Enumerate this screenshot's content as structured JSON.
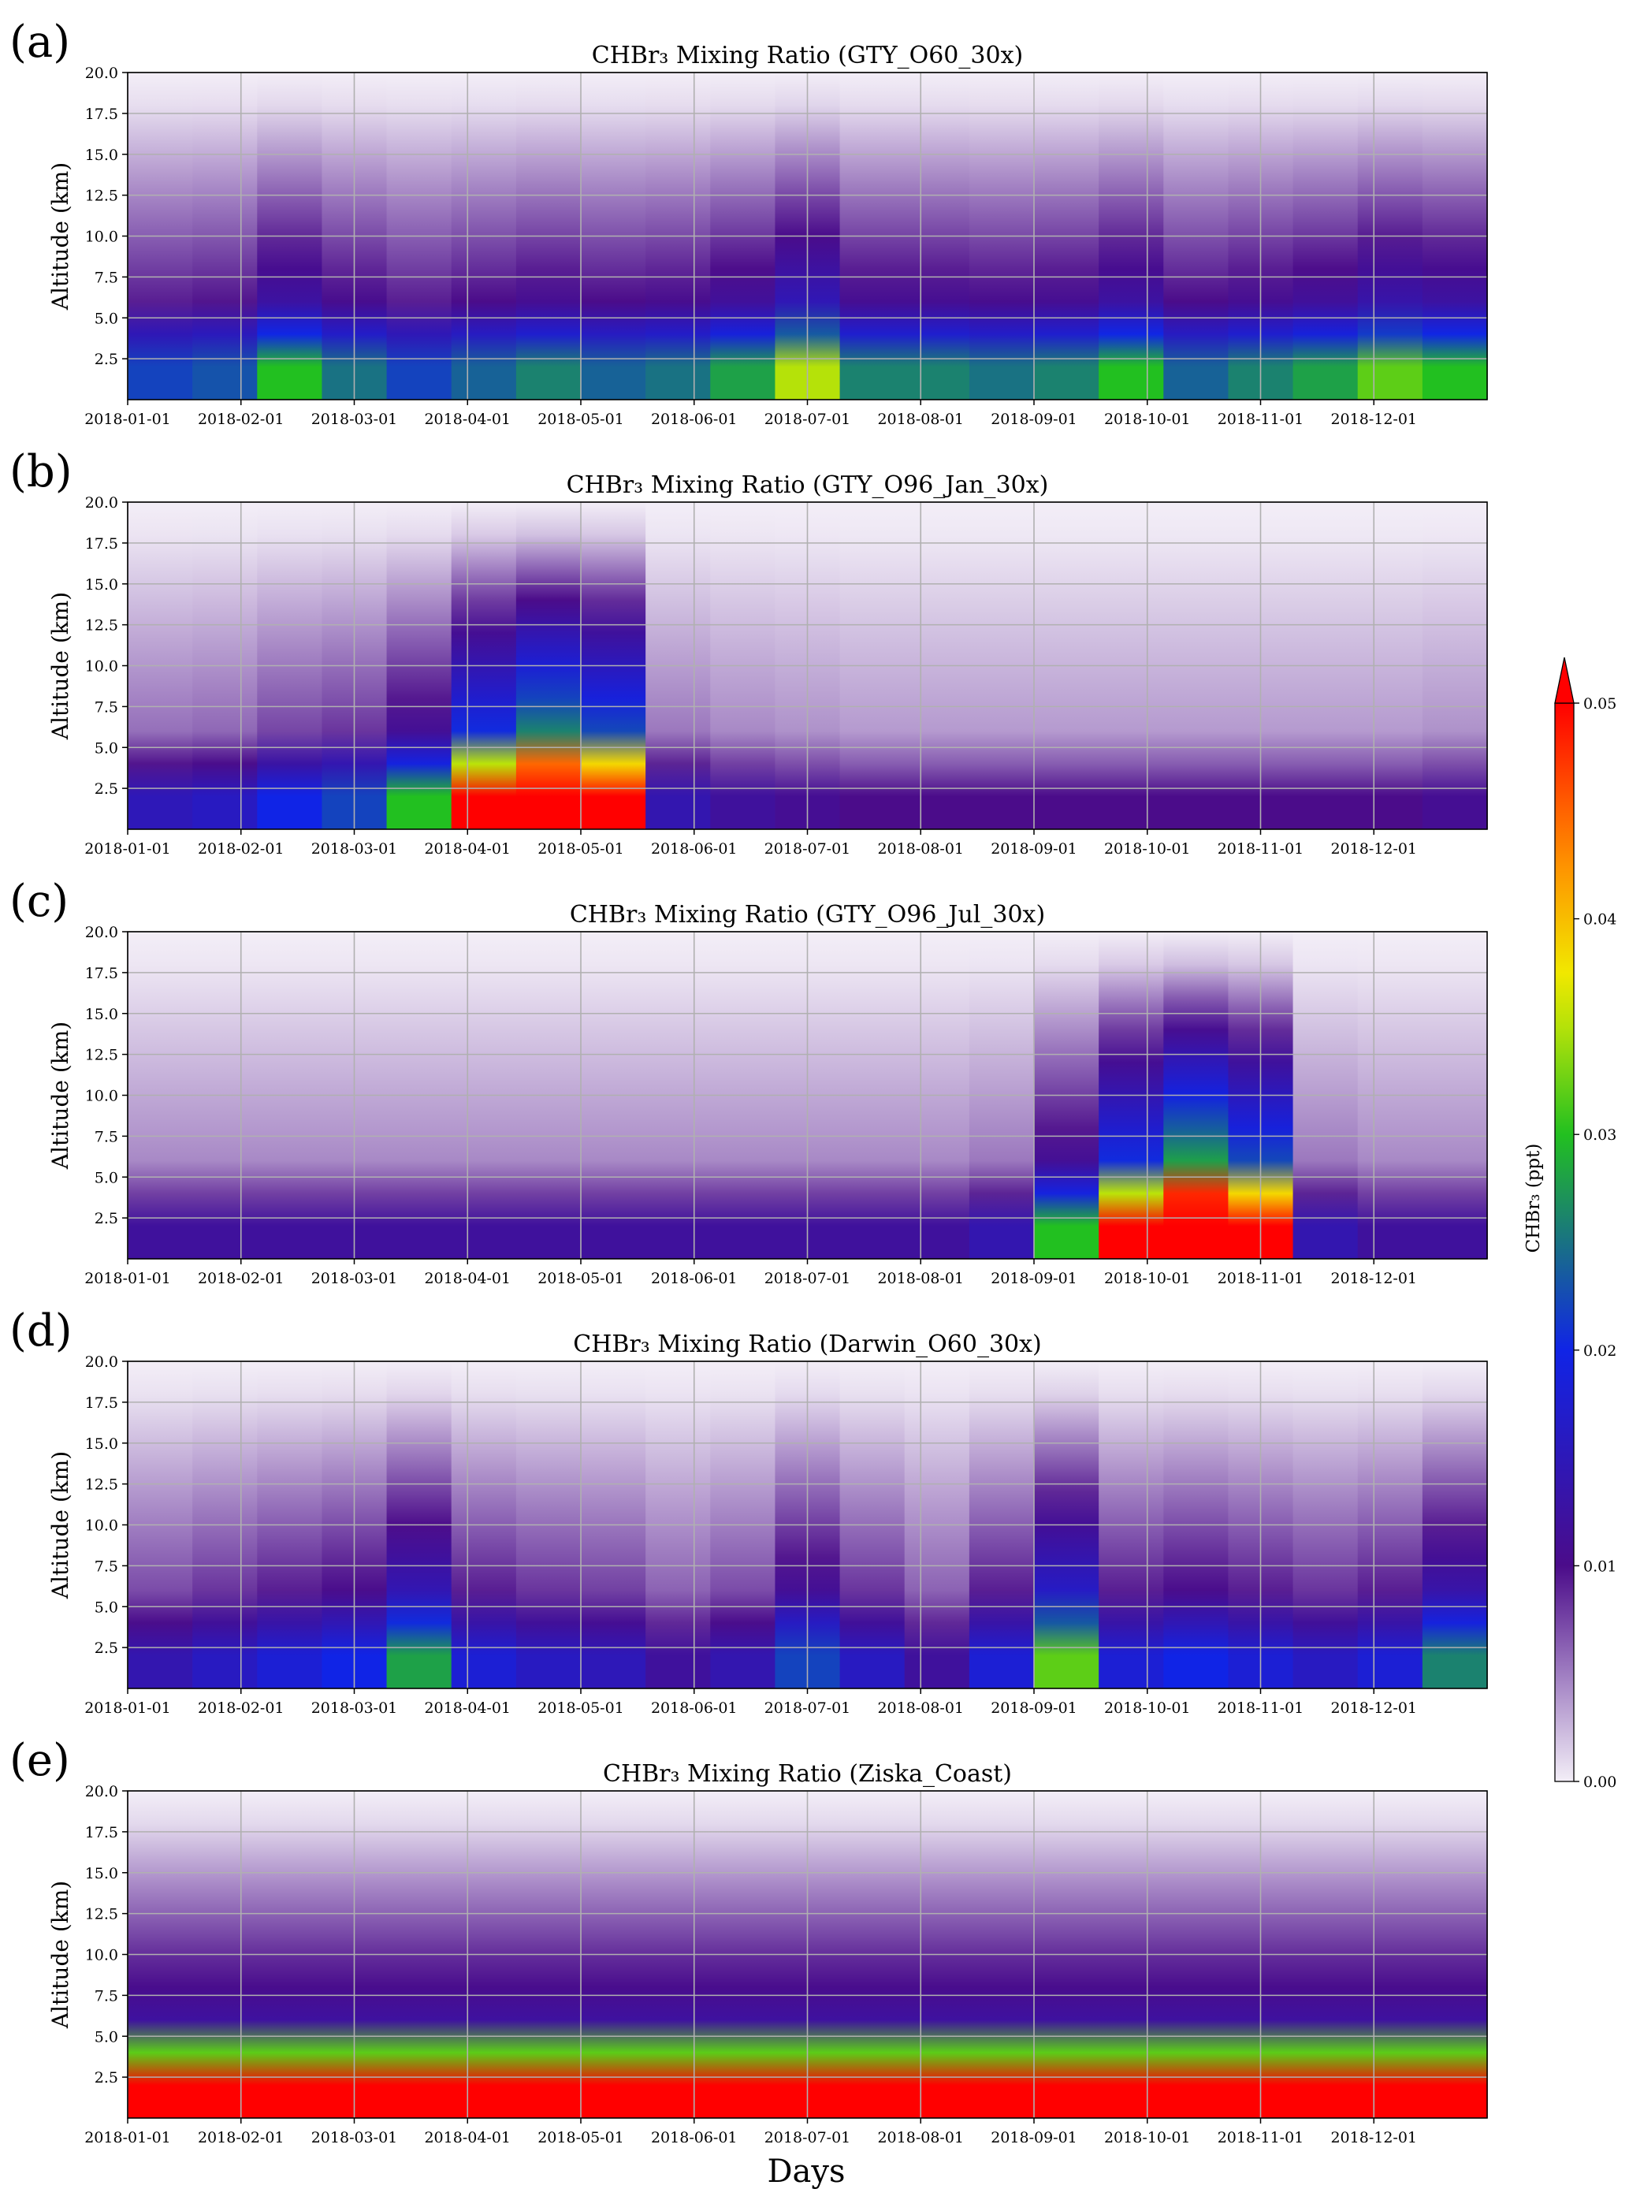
{
  "figure": {
    "xlabel": "Days"
  },
  "colors": {
    "low": "#f3eef7",
    "purple": "#4b0c8a",
    "blue": "#1024e6",
    "green": "#22c020",
    "yellow": "#f0f000",
    "orange": "#ff8a00",
    "red": "#ff0000",
    "grid": "#b0b0b0"
  },
  "colorbar": {
    "label": "CHBr₃ (ppt)",
    "ticks": [
      "0.00",
      "0.01",
      "0.02",
      "0.03",
      "0.04",
      "0.05"
    ],
    "range": [
      0,
      0.05
    ],
    "extend": "max"
  },
  "chart_data": [
    {
      "type": "heatmap",
      "panel_label": "(a)",
      "title": "CHBr₃ Mixing Ratio (GTY_O60_30x)",
      "xlabel": "",
      "ylabel": "Altitude (km)",
      "ylim": [
        0,
        20
      ],
      "y_ticks": [
        "2.5",
        "5.0",
        "7.5",
        "10.0",
        "12.5",
        "15.0",
        "17.5",
        "20.0"
      ],
      "x_ticks": [
        "2018-01-01",
        "2018-02-01",
        "2018-03-01",
        "2018-04-01",
        "2018-05-01",
        "2018-06-01",
        "2018-07-01",
        "2018-08-01",
        "2018-09-01",
        "2018-10-01",
        "2018-11-01",
        "2018-12-01"
      ],
      "surface_ppt": [
        0.022,
        0.023,
        0.03,
        0.025,
        0.022,
        0.024,
        0.026,
        0.024,
        0.025,
        0.028,
        0.035,
        0.026,
        0.026,
        0.025,
        0.026,
        0.03,
        0.024,
        0.026,
        0.028,
        0.032,
        0.03
      ]
    },
    {
      "type": "heatmap",
      "panel_label": "(b)",
      "title": "CHBr₃ Mixing Ratio (GTY_O96_Jan_30x)",
      "xlabel": "",
      "ylabel": "Altitude (km)",
      "ylim": [
        0,
        20
      ],
      "y_ticks": [
        "2.5",
        "5.0",
        "7.5",
        "10.0",
        "12.5",
        "15.0",
        "17.5",
        "20.0"
      ],
      "x_ticks": [
        "2018-01-01",
        "2018-02-01",
        "2018-03-01",
        "2018-04-01",
        "2018-05-01",
        "2018-06-01",
        "2018-07-01",
        "2018-08-01",
        "2018-09-01",
        "2018-10-01",
        "2018-11-01",
        "2018-12-01"
      ],
      "surface_ppt": [
        0.015,
        0.016,
        0.02,
        0.022,
        0.03,
        0.055,
        0.07,
        0.06,
        0.014,
        0.012,
        0.011,
        0.01,
        0.01,
        0.01,
        0.01,
        0.01,
        0.01,
        0.01,
        0.01,
        0.01,
        0.011
      ]
    },
    {
      "type": "heatmap",
      "panel_label": "(c)",
      "title": "CHBr₃ Mixing Ratio (GTY_O96_Jul_30x)",
      "xlabel": "",
      "ylabel": "Altitude (km)",
      "ylim": [
        0,
        20
      ],
      "y_ticks": [
        "2.5",
        "5.0",
        "7.5",
        "10.0",
        "12.5",
        "15.0",
        "17.5",
        "20.0"
      ],
      "x_ticks": [
        "2018-01-01",
        "2018-02-01",
        "2018-03-01",
        "2018-04-01",
        "2018-05-01",
        "2018-06-01",
        "2018-07-01",
        "2018-08-01",
        "2018-09-01",
        "2018-10-01",
        "2018-11-01",
        "2018-12-01"
      ],
      "surface_ppt": [
        0.012,
        0.012,
        0.012,
        0.012,
        0.012,
        0.012,
        0.012,
        0.012,
        0.012,
        0.012,
        0.012,
        0.012,
        0.012,
        0.014,
        0.03,
        0.055,
        0.075,
        0.06,
        0.014,
        0.012,
        0.012
      ]
    },
    {
      "type": "heatmap",
      "panel_label": "(d)",
      "title": "CHBr₃ Mixing Ratio (Darwin_O60_30x)",
      "xlabel": "",
      "ylabel": "Altitude (km)",
      "ylim": [
        0,
        20
      ],
      "y_ticks": [
        "2.5",
        "5.0",
        "7.5",
        "10.0",
        "12.5",
        "15.0",
        "17.5",
        "20.0"
      ],
      "x_ticks": [
        "2018-01-01",
        "2018-02-01",
        "2018-03-01",
        "2018-04-01",
        "2018-05-01",
        "2018-06-01",
        "2018-07-01",
        "2018-08-01",
        "2018-09-01",
        "2018-10-01",
        "2018-11-01",
        "2018-12-01"
      ],
      "surface_ppt": [
        0.014,
        0.016,
        0.018,
        0.02,
        0.028,
        0.018,
        0.016,
        0.015,
        0.012,
        0.014,
        0.022,
        0.016,
        0.012,
        0.018,
        0.032,
        0.018,
        0.02,
        0.018,
        0.016,
        0.018,
        0.026
      ]
    },
    {
      "type": "heatmap",
      "panel_label": "(e)",
      "title": "CHBr₃ Mixing Ratio (Ziska_Coast)",
      "xlabel": "Days",
      "ylabel": "Altitude (km)",
      "ylim": [
        0,
        20
      ],
      "y_ticks": [
        "2.5",
        "5.0",
        "7.5",
        "10.0",
        "12.5",
        "15.0",
        "17.5",
        "20.0"
      ],
      "x_ticks": [
        "2018-01-01",
        "2018-02-01",
        "2018-03-01",
        "2018-04-01",
        "2018-05-01",
        "2018-06-01",
        "2018-07-01",
        "2018-08-01",
        "2018-09-01",
        "2018-10-01",
        "2018-11-01",
        "2018-12-01"
      ],
      "surface_ppt": [
        0.06,
        0.06,
        0.06,
        0.06,
        0.06,
        0.06,
        0.06,
        0.06,
        0.06,
        0.06,
        0.06,
        0.06,
        0.06,
        0.06,
        0.06,
        0.06,
        0.06,
        0.06,
        0.06,
        0.06,
        0.06
      ]
    }
  ]
}
